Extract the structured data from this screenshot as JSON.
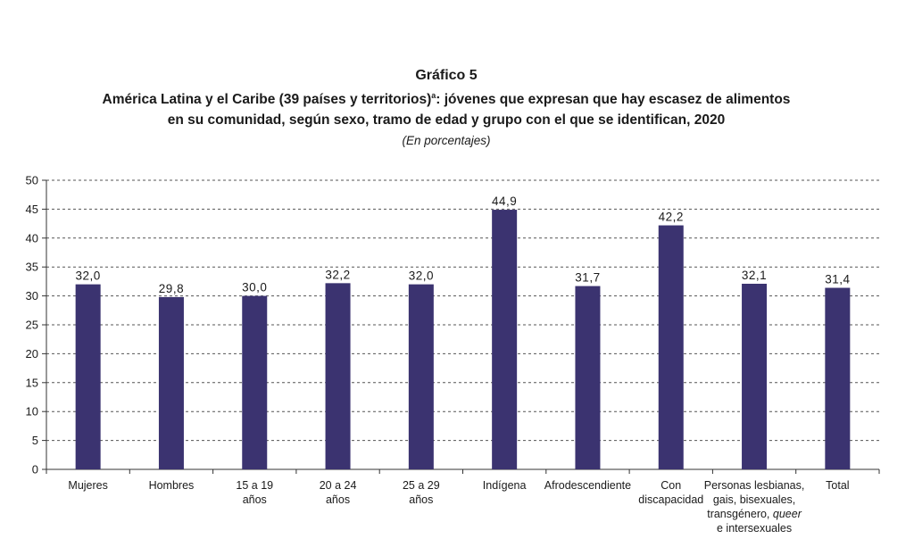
{
  "header": {
    "label": "Gráfico 5",
    "title_part1": "América Latina y el Caribe (39 países y territorios)",
    "title_sup": "a",
    "title_part2": ": jóvenes que expresan que hay escasez de alimentos",
    "title_line2": "en su comunidad, según sexo, tramo de edad y grupo con el que se identifican, 2020",
    "subtitle": "(En porcentajes)"
  },
  "chart_data": {
    "type": "bar",
    "categories": [
      "Mujeres",
      "Hombres",
      "15 a 19 años",
      "20 a 24 años",
      "25 a 29 años",
      "Indígena",
      "Afrodescendiente",
      "Con discapacidad",
      "Personas lesbianas, gais, bisexuales, transgénero, queer e intersexuales",
      "Total"
    ],
    "category_lines": [
      [
        "Mujeres"
      ],
      [
        "Hombres"
      ],
      [
        "15 a 19",
        "años"
      ],
      [
        "20 a 24",
        "años"
      ],
      [
        "25 a 29",
        "años"
      ],
      [
        "Indígena"
      ],
      [
        "Afrodescendiente"
      ],
      [
        "Con",
        "discapacidad"
      ],
      [
        "Personas lesbianas,",
        "gais, bisexuales,",
        "transgénero, queer",
        "e intersexuales"
      ],
      [
        "Total"
      ]
    ],
    "values": [
      32.0,
      29.8,
      30.0,
      32.2,
      32.0,
      44.9,
      31.7,
      42.2,
      32.1,
      31.4
    ],
    "value_labels": [
      "32,0",
      "29,8",
      "30,0",
      "32,2",
      "32,0",
      "44,9",
      "31,7",
      "42,2",
      "32,1",
      "31,4"
    ],
    "yticks": [
      0,
      5,
      10,
      15,
      20,
      25,
      30,
      35,
      40,
      45,
      50
    ],
    "ylim": [
      0,
      50
    ],
    "grid": true,
    "bar_color": "#3b3370",
    "grid_color": "#555555"
  }
}
